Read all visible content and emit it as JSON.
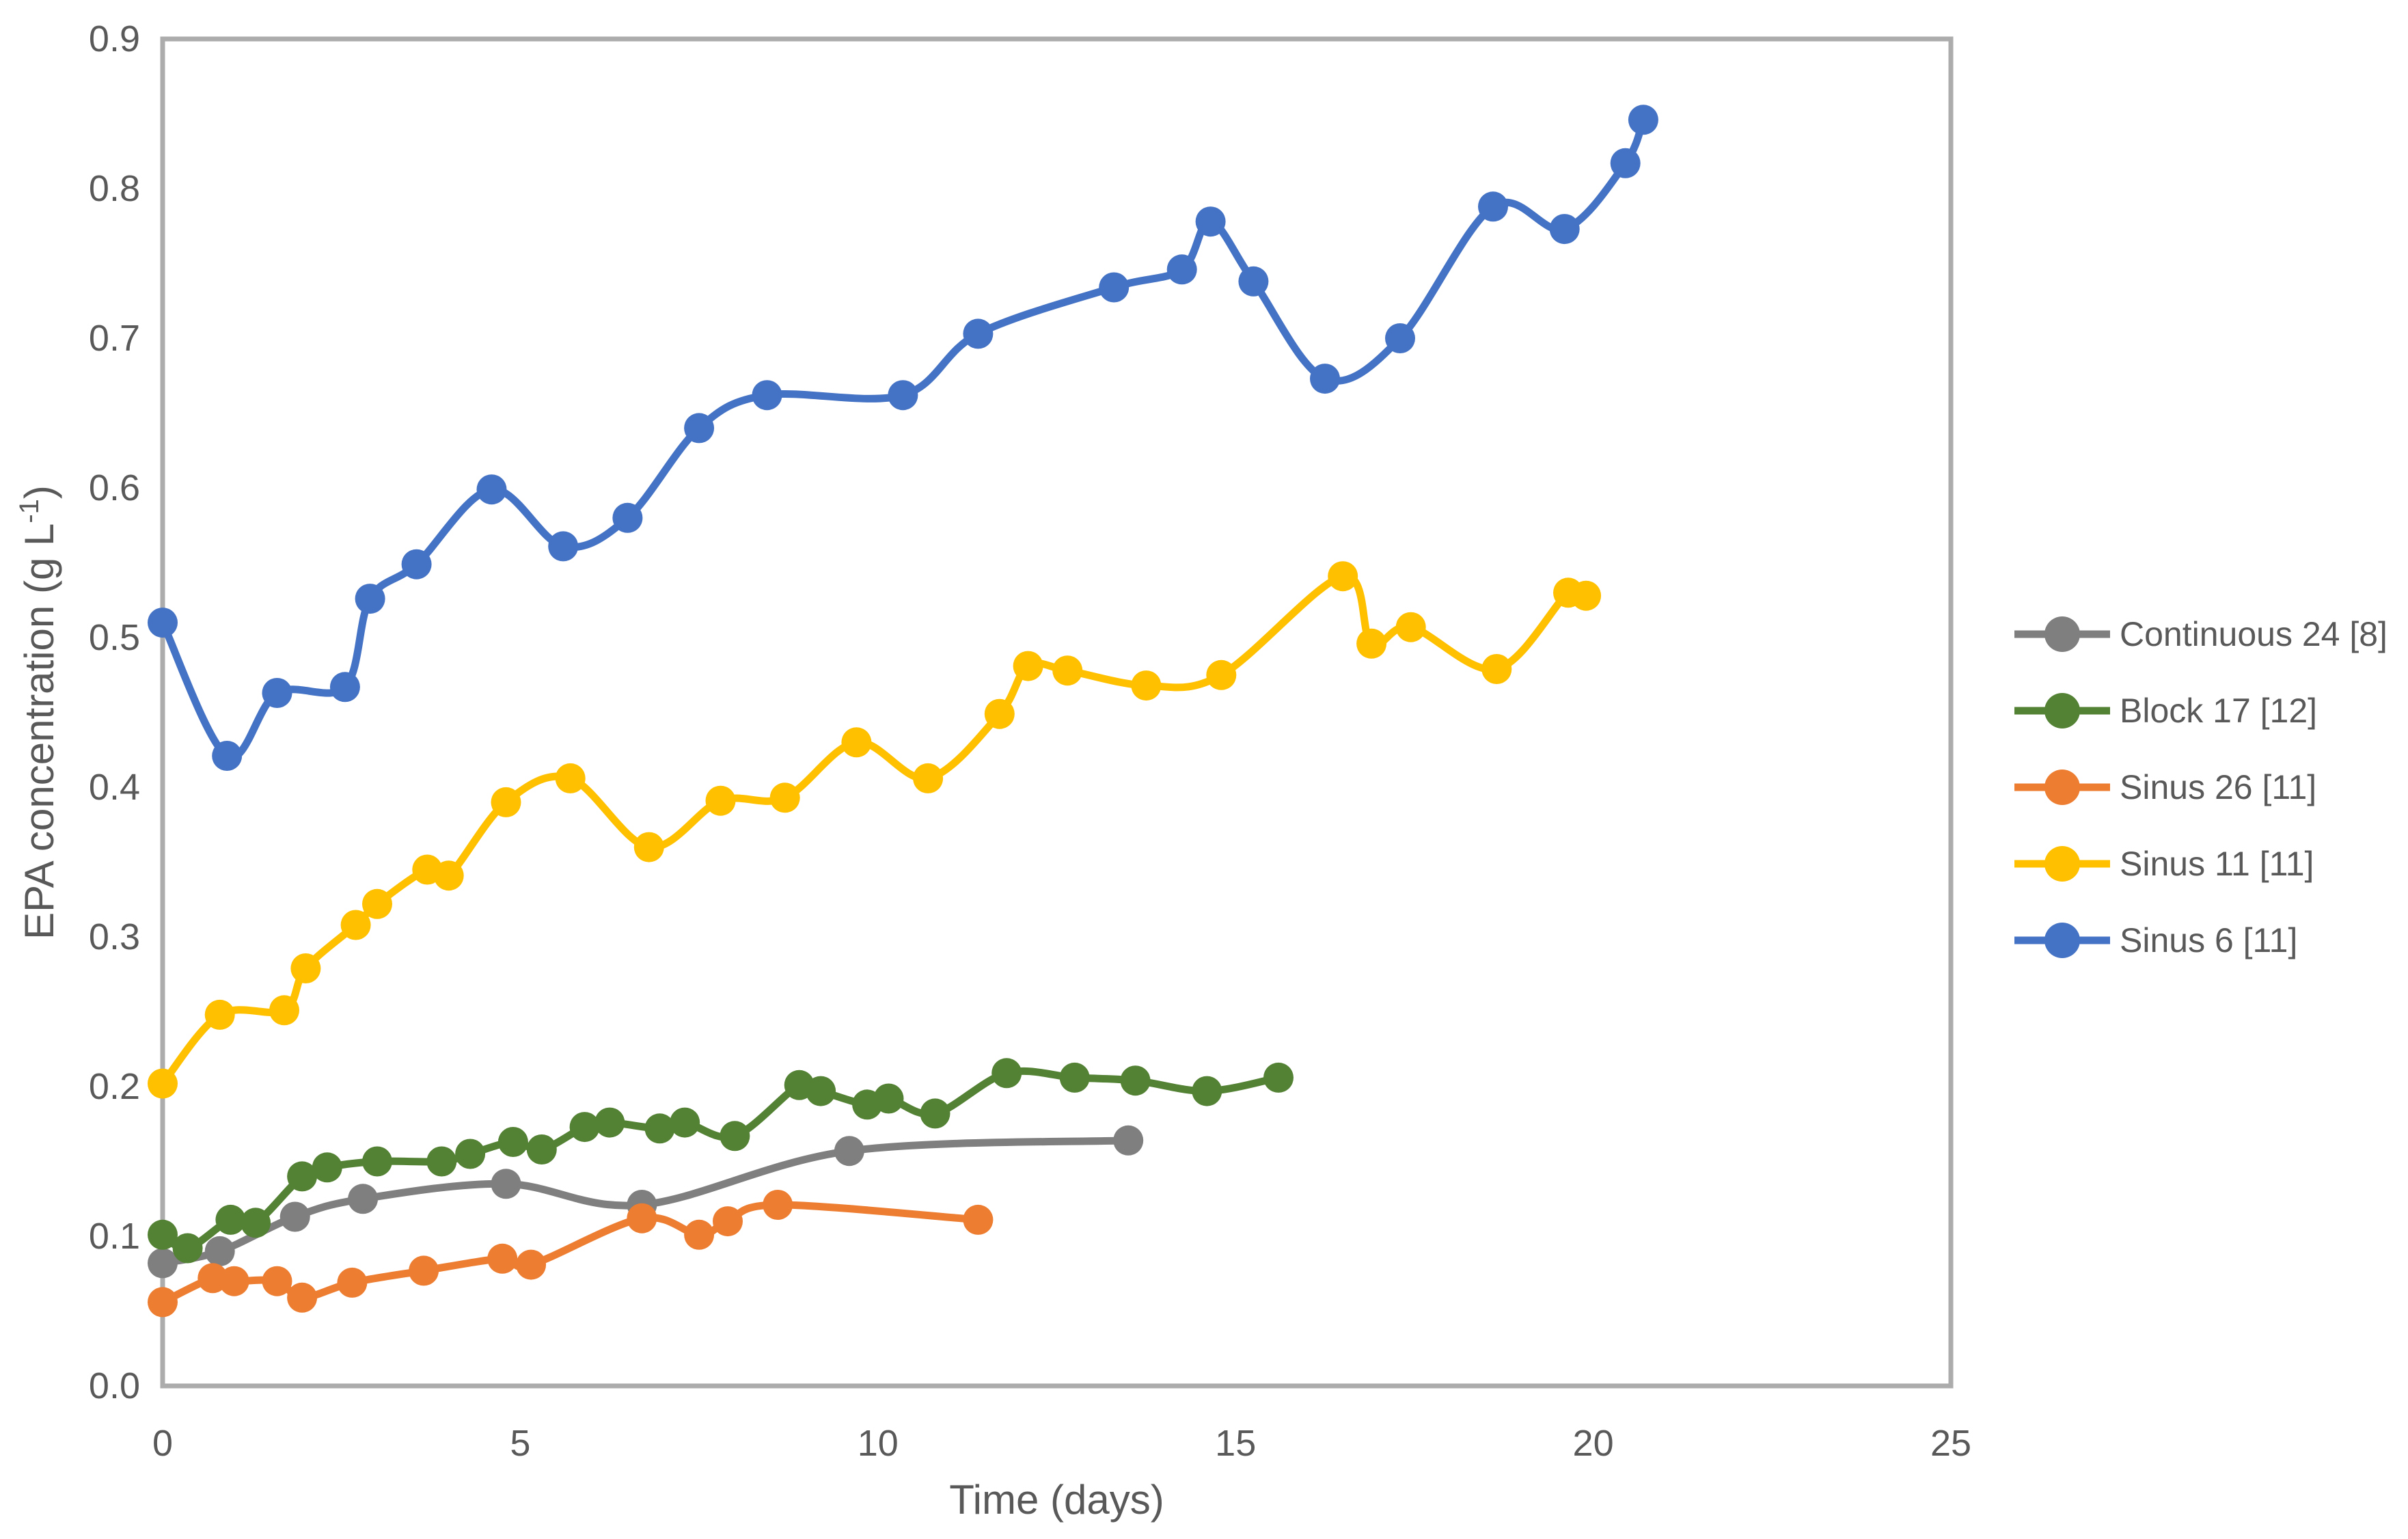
{
  "figure": {
    "background": "#FFFFFF",
    "text_color": "#595959",
    "axis_line_color": "#ACACAC"
  },
  "chart_data": {
    "type": "line",
    "title": "",
    "xlabel": "Time (days)",
    "ylabel": {
      "main": "EPA concentration (g L",
      "superscript": "-1",
      "close": ")"
    },
    "x_axis": {
      "min": 0,
      "max": 25,
      "tick_labels": [
        "0",
        "5",
        "10",
        "15",
        "20",
        "25"
      ],
      "tick_values": [
        0,
        5,
        10,
        15,
        20,
        25
      ]
    },
    "y_axis": {
      "min": 0,
      "max": 0.9,
      "tick_labels": [
        "0.0",
        "0.1",
        "0.2",
        "0.3",
        "0.4",
        "0.5",
        "0.6",
        "0.7",
        "0.8",
        "0.9"
      ],
      "tick_values": [
        0,
        0.1,
        0.2,
        0.3,
        0.4,
        0.5,
        0.6,
        0.7,
        0.8,
        0.9
      ]
    },
    "grid": false,
    "legend_position": "right",
    "line_style": "smoothed",
    "marker": "circle",
    "series": [
      {
        "name": "Continuous 24 [8]",
        "color": "#7F7F7F",
        "points": [
          [
            0,
            0.082
          ],
          [
            0.8,
            0.09
          ],
          [
            1.85,
            0.113
          ],
          [
            2.8,
            0.125
          ],
          [
            4.8,
            0.135
          ],
          [
            6.7,
            0.121
          ],
          [
            9.6,
            0.157
          ],
          [
            13.5,
            0.164
          ]
        ]
      },
      {
        "name": "Block 17 [12]",
        "color": "#548235",
        "points": [
          [
            0,
            0.101
          ],
          [
            0.35,
            0.092
          ],
          [
            0.95,
            0.111
          ],
          [
            1.3,
            0.109
          ],
          [
            1.95,
            0.14
          ],
          [
            2.3,
            0.146
          ],
          [
            3.0,
            0.15
          ],
          [
            3.9,
            0.15
          ],
          [
            4.3,
            0.155
          ],
          [
            4.9,
            0.163
          ],
          [
            5.3,
            0.158
          ],
          [
            5.9,
            0.173
          ],
          [
            6.25,
            0.176
          ],
          [
            6.95,
            0.172
          ],
          [
            7.3,
            0.176
          ],
          [
            8.0,
            0.167
          ],
          [
            8.9,
            0.201
          ],
          [
            9.2,
            0.197
          ],
          [
            9.85,
            0.188
          ],
          [
            10.15,
            0.192
          ],
          [
            10.8,
            0.182
          ],
          [
            11.8,
            0.209
          ],
          [
            12.75,
            0.206
          ],
          [
            13.6,
            0.204
          ],
          [
            14.6,
            0.197
          ],
          [
            15.6,
            0.206
          ]
        ]
      },
      {
        "name": "Sinus 26 [11]",
        "color": "#ED7D31",
        "points": [
          [
            0,
            0.056
          ],
          [
            0.7,
            0.072
          ],
          [
            1.0,
            0.07
          ],
          [
            1.6,
            0.07
          ],
          [
            1.95,
            0.059
          ],
          [
            2.65,
            0.069
          ],
          [
            3.65,
            0.077
          ],
          [
            4.75,
            0.085
          ],
          [
            5.15,
            0.081
          ],
          [
            6.7,
            0.112
          ],
          [
            7.5,
            0.101
          ],
          [
            7.9,
            0.11
          ],
          [
            8.6,
            0.121
          ],
          [
            11.4,
            0.111
          ]
        ]
      },
      {
        "name": "Sinus 11 [11]",
        "color": "#FFC000",
        "points": [
          [
            0,
            0.202
          ],
          [
            0.8,
            0.248
          ],
          [
            1.7,
            0.251
          ],
          [
            2.0,
            0.279
          ],
          [
            2.7,
            0.308
          ],
          [
            3.0,
            0.322
          ],
          [
            3.7,
            0.345
          ],
          [
            4.0,
            0.341
          ],
          [
            4.8,
            0.39
          ],
          [
            5.7,
            0.406
          ],
          [
            6.8,
            0.36
          ],
          [
            7.8,
            0.391
          ],
          [
            8.7,
            0.393
          ],
          [
            9.7,
            0.43
          ],
          [
            10.7,
            0.406
          ],
          [
            11.7,
            0.449
          ],
          [
            12.1,
            0.481
          ],
          [
            12.65,
            0.478
          ],
          [
            13.75,
            0.468
          ],
          [
            14.8,
            0.475
          ],
          [
            16.5,
            0.541
          ],
          [
            16.9,
            0.496
          ],
          [
            17.45,
            0.507
          ],
          [
            18.65,
            0.479
          ],
          [
            19.65,
            0.53
          ],
          [
            19.9,
            0.528
          ]
        ]
      },
      {
        "name": "Sinus 6 [11]",
        "color": "#4472C4",
        "points": [
          [
            0,
            0.51
          ],
          [
            0.9,
            0.421
          ],
          [
            1.6,
            0.463
          ],
          [
            2.55,
            0.467
          ],
          [
            2.9,
            0.526
          ],
          [
            3.55,
            0.549
          ],
          [
            4.6,
            0.599
          ],
          [
            5.6,
            0.561
          ],
          [
            6.5,
            0.58
          ],
          [
            7.5,
            0.64
          ],
          [
            8.45,
            0.662
          ],
          [
            10.35,
            0.662
          ],
          [
            11.4,
            0.703
          ],
          [
            13.3,
            0.734
          ],
          [
            14.25,
            0.746
          ],
          [
            14.65,
            0.778
          ],
          [
            15.25,
            0.738
          ],
          [
            16.25,
            0.673
          ],
          [
            17.3,
            0.7
          ],
          [
            18.6,
            0.788
          ],
          [
            19.6,
            0.773
          ],
          [
            20.45,
            0.817
          ],
          [
            20.7,
            0.846
          ]
        ]
      }
    ]
  }
}
